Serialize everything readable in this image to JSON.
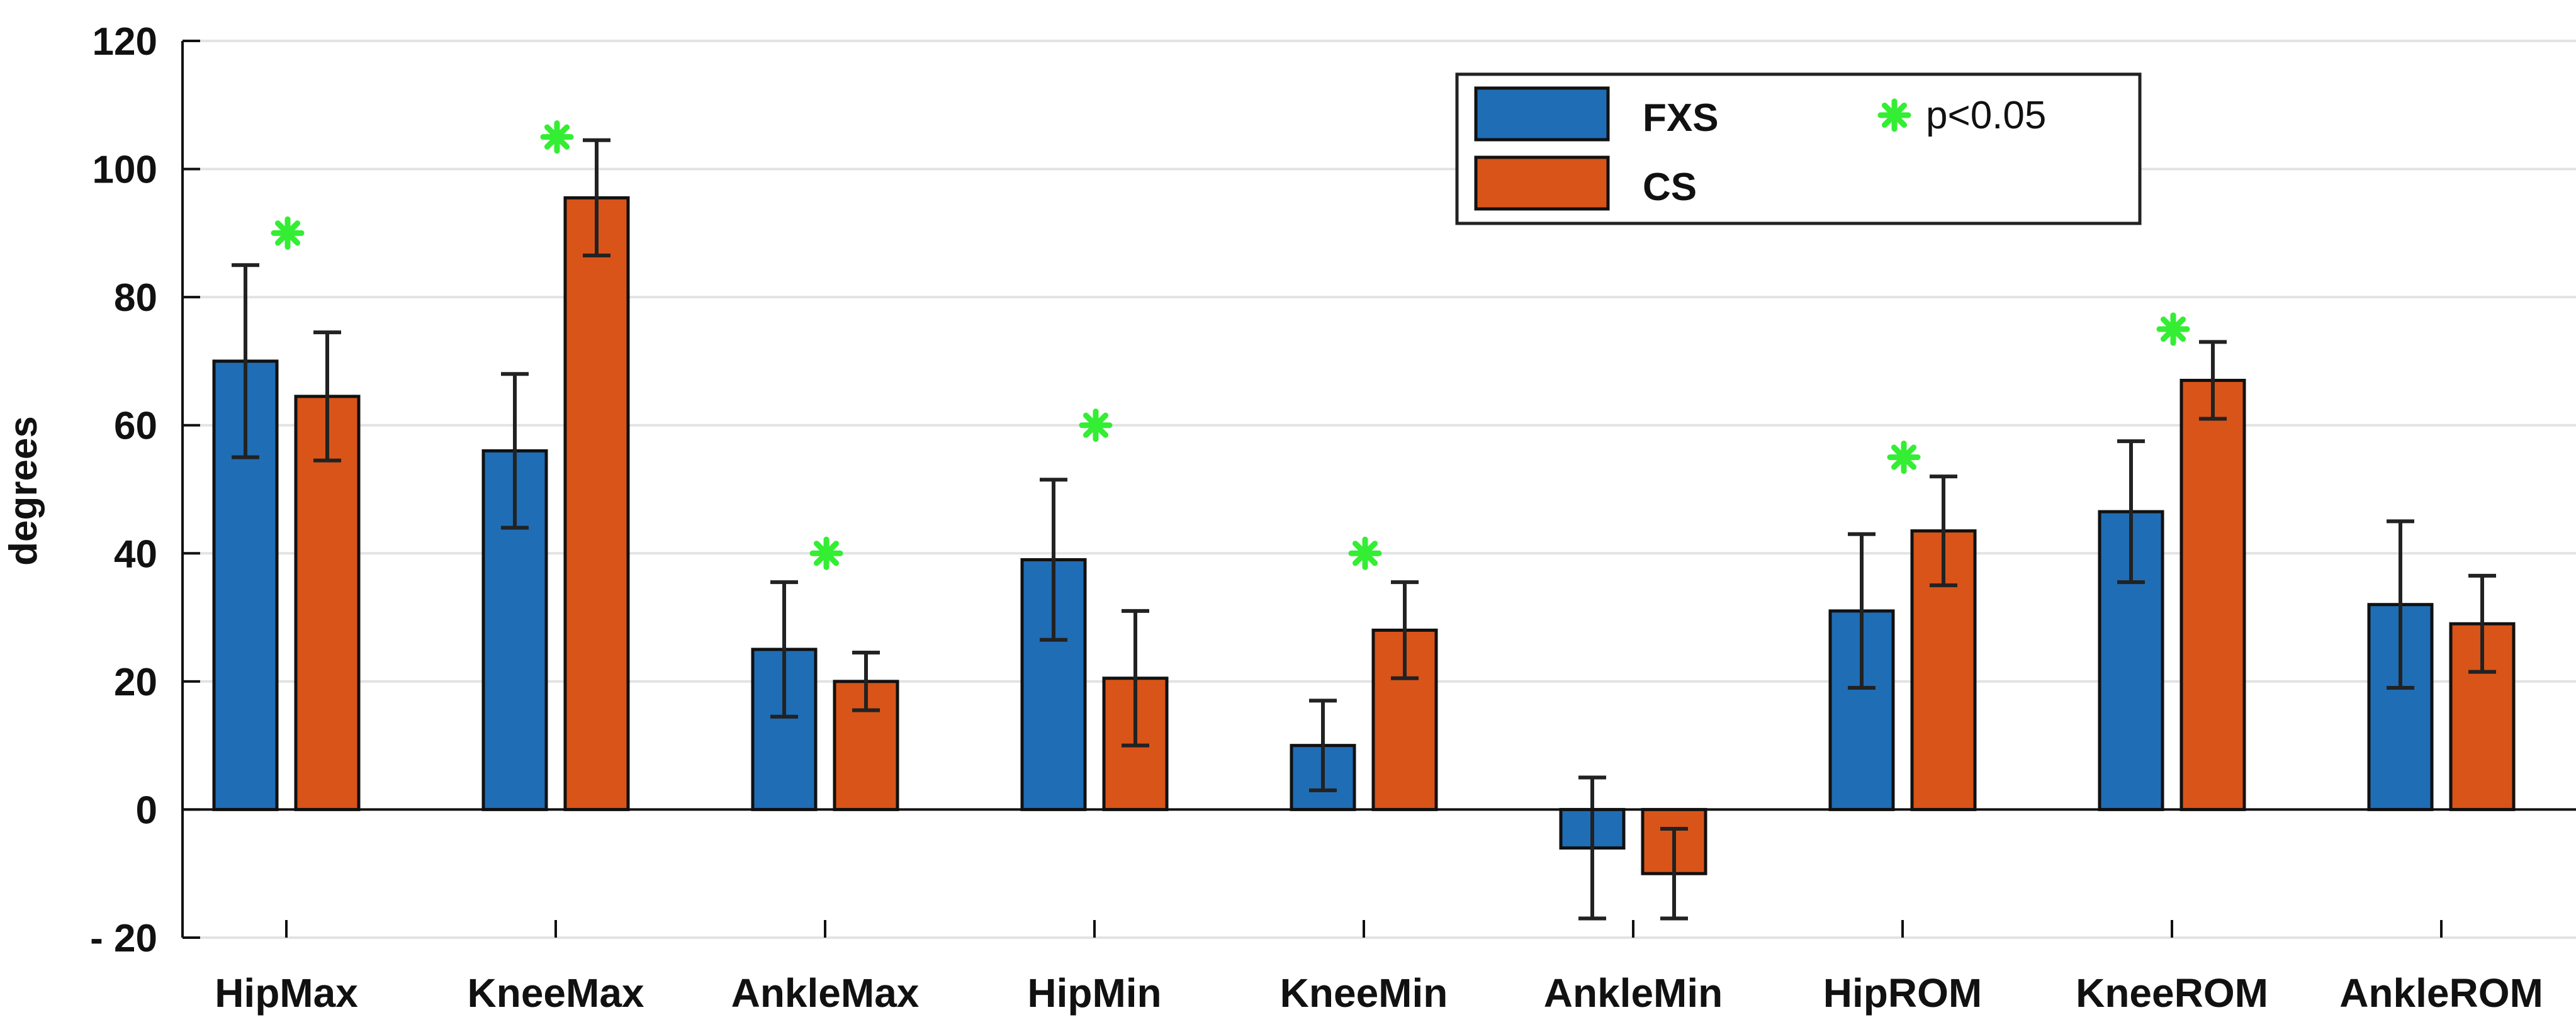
{
  "chart_data": {
    "type": "bar",
    "title": "",
    "xlabel": "",
    "ylabel": "degrees",
    "ylim": [
      -20,
      120
    ],
    "yticks": [
      -20,
      0,
      20,
      40,
      60,
      80,
      100,
      120
    ],
    "ytick_labels": [
      "- 20",
      "0",
      "20",
      "40",
      "60",
      "80",
      "100",
      "120"
    ],
    "grid": true,
    "categories": [
      "HipMax",
      "KneeMax",
      "AnkleMax",
      "HipMin",
      "KneeMin",
      "AnkleMin",
      "HipROM",
      "KneeROM",
      "AnkleROM"
    ],
    "series": [
      {
        "name": "FXS",
        "color": "#1f6db5",
        "values": [
          70,
          56,
          25,
          39,
          10,
          -6,
          31,
          46.5,
          32
        ],
        "error": [
          15,
          12,
          10.5,
          12.5,
          7,
          11,
          12,
          11,
          13
        ]
      },
      {
        "name": "CS",
        "color": "#d95418",
        "values": [
          64.5,
          95.5,
          20,
          20.5,
          28,
          -10,
          43.5,
          67,
          29
        ],
        "error": [
          10,
          9,
          4.5,
          10.5,
          7.5,
          7,
          8.5,
          6,
          7.5
        ]
      }
    ],
    "significance": {
      "label": "p<0.05",
      "color": "#33ee33",
      "markers": [
        {
          "category": "HipMax",
          "y": 90
        },
        {
          "category": "KneeMax",
          "y": 105
        },
        {
          "category": "AnkleMax",
          "y": 40
        },
        {
          "category": "HipMin",
          "y": 60
        },
        {
          "category": "KneeMin",
          "y": 40
        },
        {
          "category": "HipROM",
          "y": 55
        },
        {
          "category": "KneeROM",
          "y": 75
        }
      ]
    },
    "legend": {
      "position": "top-right",
      "entries": [
        "FXS",
        "CS"
      ],
      "marker_label": "p<0.05"
    }
  }
}
